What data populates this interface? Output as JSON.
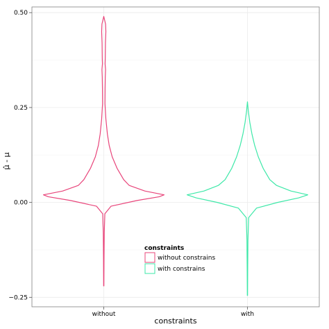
{
  "chart_data": {
    "type": "violin",
    "xlabel": "constraints",
    "ylabel": "μ̂ - μ",
    "categories": [
      "without",
      "with"
    ],
    "ylim": [
      -0.275,
      0.515
    ],
    "yticks": [
      -0.25,
      0.0,
      0.25,
      0.5
    ],
    "ytick_labels": [
      "−0.25",
      "0.00",
      "0.25",
      "0.50"
    ],
    "grid": true,
    "legend": {
      "title": "constraints",
      "placement": "inside-bottom-center",
      "entries": [
        {
          "label": "without constrains",
          "color": "#e8447a"
        },
        {
          "label": "with constrains",
          "color": "#3de8a8"
        }
      ]
    },
    "series": [
      {
        "category": "without",
        "color": "#e8447a",
        "min": -0.22,
        "max": 0.49,
        "profile": [
          [
            -0.22,
            0.002
          ],
          [
            -0.15,
            0.004
          ],
          [
            -0.08,
            0.008
          ],
          [
            -0.03,
            0.018
          ],
          [
            -0.01,
            0.12
          ],
          [
            0.005,
            0.55
          ],
          [
            0.015,
            0.92
          ],
          [
            0.02,
            1.0
          ],
          [
            0.03,
            0.68
          ],
          [
            0.045,
            0.42
          ],
          [
            0.06,
            0.33
          ],
          [
            0.09,
            0.22
          ],
          [
            0.12,
            0.14
          ],
          [
            0.15,
            0.09
          ],
          [
            0.18,
            0.06
          ],
          [
            0.22,
            0.035
          ],
          [
            0.26,
            0.02
          ],
          [
            0.3,
            0.022
          ],
          [
            0.33,
            0.025
          ],
          [
            0.35,
            0.03
          ],
          [
            0.365,
            0.022
          ],
          [
            0.38,
            0.025
          ],
          [
            0.42,
            0.028
          ],
          [
            0.45,
            0.035
          ],
          [
            0.47,
            0.03
          ],
          [
            0.48,
            0.015
          ],
          [
            0.49,
            0.0
          ]
        ]
      },
      {
        "category": "with",
        "color": "#3de8a8",
        "min": -0.245,
        "max": 0.265,
        "profile": [
          [
            -0.245,
            0.002
          ],
          [
            -0.18,
            0.004
          ],
          [
            -0.1,
            0.008
          ],
          [
            -0.04,
            0.02
          ],
          [
            -0.015,
            0.15
          ],
          [
            0.0,
            0.5
          ],
          [
            0.012,
            0.85
          ],
          [
            0.02,
            1.0
          ],
          [
            0.03,
            0.72
          ],
          [
            0.045,
            0.48
          ],
          [
            0.06,
            0.37
          ],
          [
            0.09,
            0.26
          ],
          [
            0.12,
            0.18
          ],
          [
            0.15,
            0.12
          ],
          [
            0.18,
            0.075
          ],
          [
            0.21,
            0.04
          ],
          [
            0.24,
            0.015
          ],
          [
            0.265,
            0.0
          ]
        ]
      }
    ]
  }
}
